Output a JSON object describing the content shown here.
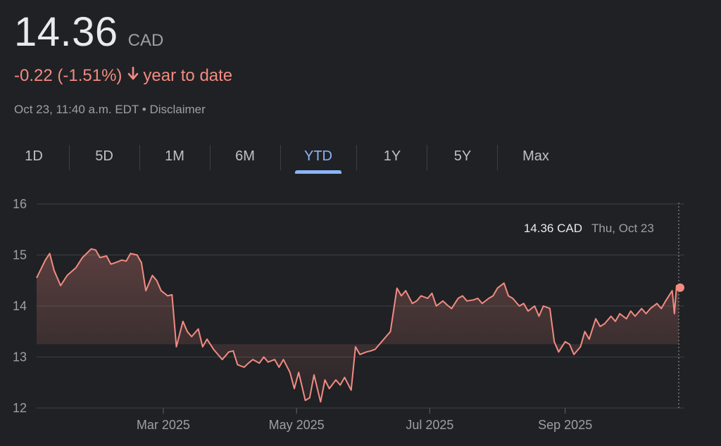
{
  "header": {
    "price": "14.36",
    "currency": "CAD",
    "change": "-0.22 (-1.51%)",
    "change_period": "year to date",
    "timestamp": "Oct 23, 11:40 a.m. EDT",
    "separator": "•",
    "disclaimer": "Disclaimer",
    "change_color": "#f28b82"
  },
  "tabs": [
    {
      "label": "1D",
      "active": false
    },
    {
      "label": "5D",
      "active": false
    },
    {
      "label": "1M",
      "active": false
    },
    {
      "label": "6M",
      "active": false
    },
    {
      "label": "YTD",
      "active": true
    },
    {
      "label": "1Y",
      "active": false
    },
    {
      "label": "5Y",
      "active": false
    },
    {
      "label": "Max",
      "active": false
    }
  ],
  "icons": {
    "change_arrow": "arrow-down-icon"
  },
  "chart_data": {
    "type": "area",
    "x_start": "2025-01-02",
    "x_end": "2025-10-23",
    "ylim": [
      12,
      16
    ],
    "y_ticks": [
      16,
      15,
      14,
      13,
      12
    ],
    "baseline": 13.25,
    "x_ticks": [
      {
        "label": "Mar 2025",
        "date": "2025-03-01"
      },
      {
        "label": "May 2025",
        "date": "2025-05-01"
      },
      {
        "label": "Jul 2025",
        "date": "2025-07-01"
      },
      {
        "label": "Sep 2025",
        "date": "2025-09-01"
      }
    ],
    "grid": true,
    "line_color": "#f28b82",
    "tooltip": {
      "value": "14.36 CAD",
      "date": "Thu, Oct 23"
    },
    "series": [
      {
        "points": [
          [
            "2025-01-02",
            14.55
          ],
          [
            "2025-01-06",
            14.9
          ],
          [
            "2025-01-08",
            15.03
          ],
          [
            "2025-01-10",
            14.7
          ],
          [
            "2025-01-13",
            14.4
          ],
          [
            "2025-01-16",
            14.6
          ],
          [
            "2025-01-20",
            14.75
          ],
          [
            "2025-01-23",
            14.95
          ],
          [
            "2025-01-27",
            15.12
          ],
          [
            "2025-01-29",
            15.1
          ],
          [
            "2025-01-31",
            14.95
          ],
          [
            "2025-02-03",
            14.98
          ],
          [
            "2025-02-05",
            14.82
          ],
          [
            "2025-02-07",
            14.85
          ],
          [
            "2025-02-10",
            14.9
          ],
          [
            "2025-02-12",
            14.88
          ],
          [
            "2025-02-14",
            15.03
          ],
          [
            "2025-02-17",
            15.0
          ],
          [
            "2025-02-19",
            14.85
          ],
          [
            "2025-02-21",
            14.3
          ],
          [
            "2025-02-24",
            14.6
          ],
          [
            "2025-02-26",
            14.5
          ],
          [
            "2025-02-28",
            14.3
          ],
          [
            "2025-03-03",
            14.2
          ],
          [
            "2025-03-05",
            14.22
          ],
          [
            "2025-03-07",
            13.2
          ],
          [
            "2025-03-10",
            13.7
          ],
          [
            "2025-03-12",
            13.5
          ],
          [
            "2025-03-14",
            13.4
          ],
          [
            "2025-03-17",
            13.55
          ],
          [
            "2025-03-19",
            13.2
          ],
          [
            "2025-03-21",
            13.35
          ],
          [
            "2025-03-24",
            13.15
          ],
          [
            "2025-03-26",
            13.05
          ],
          [
            "2025-03-28",
            12.95
          ],
          [
            "2025-03-31",
            13.1
          ],
          [
            "2025-04-02",
            13.12
          ],
          [
            "2025-04-04",
            12.85
          ],
          [
            "2025-04-07",
            12.8
          ],
          [
            "2025-04-09",
            12.88
          ],
          [
            "2025-04-11",
            12.95
          ],
          [
            "2025-04-14",
            12.88
          ],
          [
            "2025-04-16",
            13.0
          ],
          [
            "2025-04-18",
            12.9
          ],
          [
            "2025-04-21",
            12.95
          ],
          [
            "2025-04-23",
            12.8
          ],
          [
            "2025-04-25",
            12.95
          ],
          [
            "2025-04-28",
            12.7
          ],
          [
            "2025-04-30",
            12.38
          ],
          [
            "2025-05-02",
            12.7
          ],
          [
            "2025-05-05",
            12.15
          ],
          [
            "2025-05-07",
            12.2
          ],
          [
            "2025-05-09",
            12.65
          ],
          [
            "2025-05-12",
            12.12
          ],
          [
            "2025-05-14",
            12.55
          ],
          [
            "2025-05-16",
            12.38
          ],
          [
            "2025-05-19",
            12.55
          ],
          [
            "2025-05-21",
            12.45
          ],
          [
            "2025-05-23",
            12.6
          ],
          [
            "2025-05-26",
            12.35
          ],
          [
            "2025-05-28",
            13.2
          ],
          [
            "2025-05-30",
            13.05
          ],
          [
            "2025-06-02",
            13.1
          ],
          [
            "2025-06-04",
            13.12
          ],
          [
            "2025-06-06",
            13.15
          ],
          [
            "2025-06-09",
            13.3
          ],
          [
            "2025-06-11",
            13.4
          ],
          [
            "2025-06-13",
            13.5
          ],
          [
            "2025-06-16",
            14.35
          ],
          [
            "2025-06-18",
            14.2
          ],
          [
            "2025-06-20",
            14.3
          ],
          [
            "2025-06-23",
            14.05
          ],
          [
            "2025-06-25",
            14.1
          ],
          [
            "2025-06-27",
            14.2
          ],
          [
            "2025-06-30",
            14.15
          ],
          [
            "2025-07-02",
            14.25
          ],
          [
            "2025-07-04",
            14.0
          ],
          [
            "2025-07-07",
            14.1
          ],
          [
            "2025-07-09",
            14.02
          ],
          [
            "2025-07-11",
            13.95
          ],
          [
            "2025-07-14",
            14.15
          ],
          [
            "2025-07-16",
            14.2
          ],
          [
            "2025-07-18",
            14.1
          ],
          [
            "2025-07-21",
            14.12
          ],
          [
            "2025-07-23",
            14.15
          ],
          [
            "2025-07-25",
            14.05
          ],
          [
            "2025-07-28",
            14.15
          ],
          [
            "2025-07-30",
            14.2
          ],
          [
            "2025-08-01",
            14.35
          ],
          [
            "2025-08-04",
            14.45
          ],
          [
            "2025-08-06",
            14.2
          ],
          [
            "2025-08-08",
            14.15
          ],
          [
            "2025-08-11",
            14.0
          ],
          [
            "2025-08-13",
            14.05
          ],
          [
            "2025-08-15",
            13.9
          ],
          [
            "2025-08-18",
            14.0
          ],
          [
            "2025-08-20",
            13.8
          ],
          [
            "2025-08-22",
            14.0
          ],
          [
            "2025-08-25",
            13.95
          ],
          [
            "2025-08-27",
            13.3
          ],
          [
            "2025-08-29",
            13.1
          ],
          [
            "2025-09-01",
            13.3
          ],
          [
            "2025-09-03",
            13.25
          ],
          [
            "2025-09-05",
            13.05
          ],
          [
            "2025-09-08",
            13.2
          ],
          [
            "2025-09-10",
            13.5
          ],
          [
            "2025-09-12",
            13.35
          ],
          [
            "2025-09-15",
            13.75
          ],
          [
            "2025-09-17",
            13.6
          ],
          [
            "2025-09-19",
            13.65
          ],
          [
            "2025-09-22",
            13.8
          ],
          [
            "2025-09-24",
            13.7
          ],
          [
            "2025-09-26",
            13.85
          ],
          [
            "2025-09-29",
            13.75
          ],
          [
            "2025-10-01",
            13.9
          ],
          [
            "2025-10-03",
            13.8
          ],
          [
            "2025-10-06",
            13.95
          ],
          [
            "2025-10-08",
            13.85
          ],
          [
            "2025-10-10",
            13.95
          ],
          [
            "2025-10-13",
            14.05
          ],
          [
            "2025-10-15",
            13.95
          ],
          [
            "2025-10-17",
            14.1
          ],
          [
            "2025-10-20",
            14.3
          ],
          [
            "2025-10-21",
            13.85
          ],
          [
            "2025-10-22",
            14.4
          ],
          [
            "2025-10-23",
            14.36
          ]
        ]
      }
    ]
  }
}
